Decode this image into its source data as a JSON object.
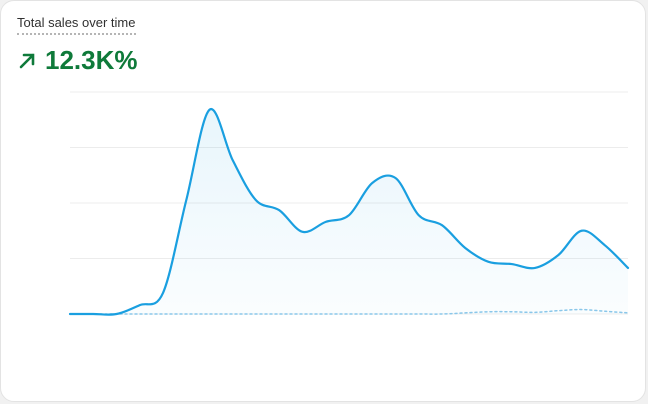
{
  "header": {
    "title": "Total sales over time",
    "metric": "12.3K%"
  },
  "chart_data": {
    "type": "line",
    "categories": [
      null,
      null,
      null,
      null,
      null,
      null,
      null,
      null,
      null,
      null,
      null,
      null,
      null,
      null,
      null,
      null,
      null,
      null,
      null,
      null,
      null,
      null,
      null,
      null,
      null
    ],
    "series": [
      {
        "color": "#1a9fe0",
        "style": "solid",
        "values": [
          0,
          0,
          0,
          0.16,
          0.38,
          2.05,
          3.68,
          2.77,
          2.05,
          1.87,
          1.48,
          1.66,
          1.78,
          2.36,
          2.45,
          1.78,
          1.6,
          1.19,
          0.94,
          0.9,
          0.83,
          1.06,
          1.5,
          1.24,
          0.83
        ]
      },
      {
        "color": "#8cc8ea",
        "style": "dotted",
        "values": [
          0,
          0,
          0,
          0,
          0,
          0,
          0,
          0,
          0,
          0,
          0,
          0,
          0,
          0,
          0,
          0,
          0,
          0.02,
          0.04,
          0.04,
          0.03,
          0.06,
          0.08,
          0.05,
          0.02
        ]
      }
    ],
    "ylim": [
      0,
      4
    ],
    "yticks": [
      0,
      1,
      2,
      3,
      4
    ],
    "grid": true
  }
}
